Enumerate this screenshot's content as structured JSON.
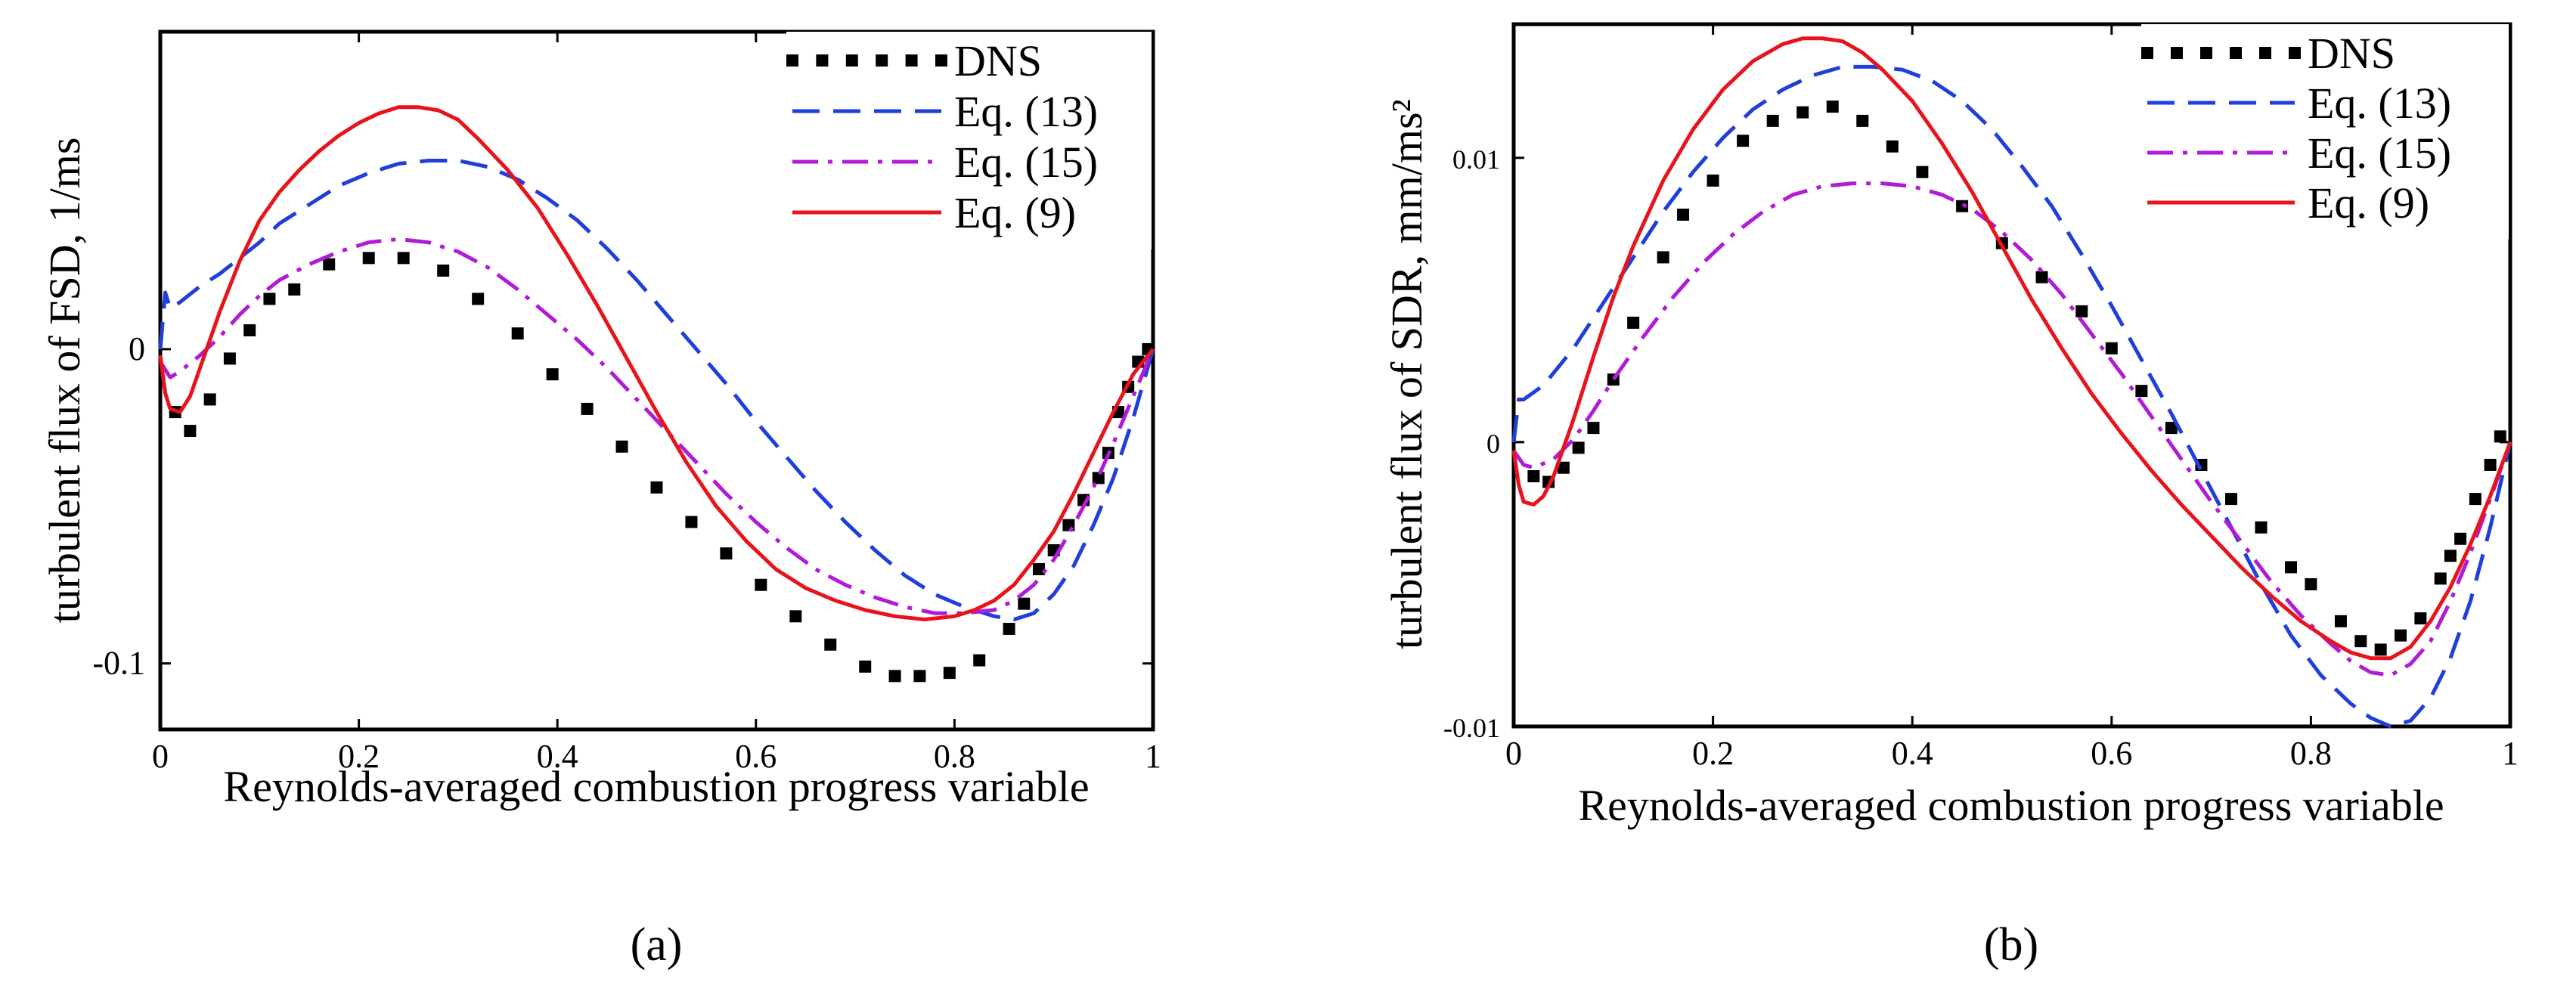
{
  "figure": {
    "panel_labels": [
      "(a)",
      "(b)"
    ]
  },
  "colors": {
    "DNS": "#000000",
    "Eq. (13)": "#1f3fdc",
    "Eq. (15)": "#b01ad8",
    "Eq. (9)": "#e8141c"
  },
  "chart_data": [
    {
      "type": "line",
      "panel": "(a)",
      "title": "",
      "xlabel": "Reynolds-averaged combustion progress variable",
      "ylabel": "turbulent flux of FSD, 1/ms",
      "xlim": [
        0,
        1
      ],
      "ylim": [
        -0.121,
        0.101
      ],
      "xticks": [
        0,
        0.2,
        0.4,
        0.6,
        0.8,
        1
      ],
      "xtick_labels": [
        "0",
        "0.2",
        "0.4",
        "0.6",
        "0.8",
        "1"
      ],
      "yticks": [
        0,
        -0.1
      ],
      "ytick_labels": [
        "0",
        "-0.1"
      ],
      "legend_position": "top-right",
      "series": [
        {
          "name": "DNS",
          "style": "squares",
          "x": [
            0.015,
            0.03,
            0.05,
            0.07,
            0.09,
            0.11,
            0.135,
            0.17,
            0.21,
            0.245,
            0.285,
            0.32,
            0.36,
            0.395,
            0.43,
            0.465,
            0.5,
            0.535,
            0.57,
            0.605,
            0.64,
            0.675,
            0.71,
            0.74,
            0.765,
            0.795,
            0.825,
            0.855,
            0.87,
            0.885,
            0.9,
            0.915,
            0.93,
            0.945,
            0.955,
            0.965,
            0.975,
            0.985,
            0.995
          ],
          "y": [
            -0.02,
            -0.026,
            -0.016,
            -0.003,
            0.006,
            0.016,
            0.019,
            0.027,
            0.029,
            0.029,
            0.025,
            0.016,
            0.005,
            -0.008,
            -0.019,
            -0.031,
            -0.044,
            -0.055,
            -0.065,
            -0.075,
            -0.085,
            -0.094,
            -0.101,
            -0.104,
            -0.104,
            -0.103,
            -0.099,
            -0.089,
            -0.081,
            -0.07,
            -0.064,
            -0.056,
            -0.048,
            -0.041,
            -0.033,
            -0.02,
            -0.012,
            -0.004,
            0.0
          ]
        },
        {
          "name": "Eq. (13)",
          "style": "dashed",
          "x": [
            0.0,
            0.005,
            0.01,
            0.02,
            0.04,
            0.06,
            0.08,
            0.1,
            0.12,
            0.15,
            0.18,
            0.21,
            0.24,
            0.27,
            0.3,
            0.33,
            0.36,
            0.39,
            0.42,
            0.45,
            0.48,
            0.51,
            0.54,
            0.57,
            0.6,
            0.63,
            0.66,
            0.69,
            0.72,
            0.75,
            0.78,
            0.81,
            0.84,
            0.86,
            0.88,
            0.9,
            0.92,
            0.94,
            0.96,
            0.98,
            1.0
          ],
          "y": [
            0.0,
            0.018,
            0.013,
            0.015,
            0.02,
            0.024,
            0.029,
            0.034,
            0.04,
            0.046,
            0.052,
            0.056,
            0.059,
            0.06,
            0.06,
            0.058,
            0.054,
            0.048,
            0.041,
            0.032,
            0.022,
            0.011,
            0.0,
            -0.011,
            -0.023,
            -0.034,
            -0.045,
            -0.055,
            -0.064,
            -0.072,
            -0.078,
            -0.082,
            -0.085,
            -0.086,
            -0.084,
            -0.078,
            -0.069,
            -0.056,
            -0.041,
            -0.022,
            0.0
          ]
        },
        {
          "name": "Eq. (15)",
          "style": "dash-dot",
          "x": [
            0.0,
            0.01,
            0.02,
            0.04,
            0.06,
            0.08,
            0.1,
            0.12,
            0.15,
            0.18,
            0.21,
            0.24,
            0.27,
            0.3,
            0.33,
            0.36,
            0.39,
            0.42,
            0.45,
            0.48,
            0.51,
            0.54,
            0.57,
            0.6,
            0.63,
            0.66,
            0.69,
            0.72,
            0.75,
            0.78,
            0.81,
            0.84,
            0.86,
            0.88,
            0.9,
            0.92,
            0.94,
            0.96,
            0.98,
            1.0
          ],
          "y": [
            -0.004,
            -0.009,
            -0.007,
            -0.002,
            0.004,
            0.011,
            0.017,
            0.022,
            0.027,
            0.031,
            0.034,
            0.035,
            0.034,
            0.031,
            0.026,
            0.019,
            0.011,
            0.003,
            -0.006,
            -0.016,
            -0.026,
            -0.036,
            -0.046,
            -0.055,
            -0.063,
            -0.07,
            -0.075,
            -0.079,
            -0.082,
            -0.084,
            -0.084,
            -0.083,
            -0.08,
            -0.075,
            -0.067,
            -0.056,
            -0.044,
            -0.03,
            -0.015,
            0.0
          ]
        },
        {
          "name": "Eq. (9)",
          "style": "solid",
          "x": [
            0.0,
            0.005,
            0.01,
            0.02,
            0.03,
            0.04,
            0.06,
            0.08,
            0.1,
            0.12,
            0.14,
            0.16,
            0.18,
            0.2,
            0.22,
            0.24,
            0.26,
            0.28,
            0.3,
            0.32,
            0.35,
            0.38,
            0.41,
            0.44,
            0.47,
            0.5,
            0.53,
            0.56,
            0.59,
            0.62,
            0.65,
            0.68,
            0.71,
            0.74,
            0.77,
            0.8,
            0.82,
            0.84,
            0.86,
            0.88,
            0.9,
            0.92,
            0.94,
            0.96,
            0.98,
            1.0
          ],
          "y": [
            -0.002,
            -0.014,
            -0.019,
            -0.02,
            -0.015,
            -0.006,
            0.012,
            0.028,
            0.041,
            0.05,
            0.057,
            0.063,
            0.068,
            0.072,
            0.075,
            0.077,
            0.077,
            0.076,
            0.073,
            0.067,
            0.057,
            0.045,
            0.03,
            0.014,
            -0.003,
            -0.02,
            -0.036,
            -0.05,
            -0.061,
            -0.07,
            -0.076,
            -0.08,
            -0.083,
            -0.085,
            -0.086,
            -0.085,
            -0.083,
            -0.08,
            -0.075,
            -0.067,
            -0.058,
            -0.046,
            -0.033,
            -0.02,
            -0.008,
            0.0
          ]
        }
      ]
    },
    {
      "type": "line",
      "panel": "(b)",
      "title": "",
      "xlabel": "Reynolds-averaged combustion progress variable",
      "ylabel": "turbulent flux of SDR, mm/ms²",
      "xlim": [
        0,
        1
      ],
      "ylim": [
        -0.01,
        0.0147
      ],
      "xticks": [
        0,
        0.2,
        0.4,
        0.6,
        0.8,
        1
      ],
      "xtick_labels": [
        "0",
        "0.2",
        "0.4",
        "0.6",
        "0.8",
        "1"
      ],
      "yticks": [
        -0.01,
        0,
        0.01
      ],
      "ytick_labels": [
        "-0.01",
        "0",
        "0.01"
      ],
      "legend_position": "top-right",
      "series": [
        {
          "name": "DNS",
          "style": "squares",
          "x": [
            0.02,
            0.035,
            0.05,
            0.065,
            0.08,
            0.1,
            0.12,
            0.15,
            0.17,
            0.2,
            0.23,
            0.26,
            0.29,
            0.32,
            0.35,
            0.38,
            0.41,
            0.45,
            0.49,
            0.53,
            0.57,
            0.6,
            0.63,
            0.66,
            0.69,
            0.72,
            0.75,
            0.78,
            0.8,
            0.83,
            0.85,
            0.87,
            0.89,
            0.91,
            0.93,
            0.94,
            0.95,
            0.965,
            0.98,
            0.99
          ],
          "y": [
            -0.0012,
            -0.0014,
            -0.0009,
            -0.0002,
            0.0005,
            0.0022,
            0.0042,
            0.0065,
            0.008,
            0.0092,
            0.0106,
            0.0113,
            0.0116,
            0.0118,
            0.0113,
            0.0104,
            0.0095,
            0.0083,
            0.007,
            0.0058,
            0.0046,
            0.0033,
            0.0018,
            0.0005,
            -0.0008,
            -0.002,
            -0.003,
            -0.0044,
            -0.005,
            -0.0063,
            -0.007,
            -0.0073,
            -0.0068,
            -0.0062,
            -0.0048,
            -0.004,
            -0.0034,
            -0.002,
            -0.0008,
            0.0002
          ]
        },
        {
          "name": "Eq. (13)",
          "style": "dashed",
          "x": [
            0.0,
            0.005,
            0.01,
            0.03,
            0.06,
            0.09,
            0.12,
            0.15,
            0.18,
            0.21,
            0.24,
            0.27,
            0.3,
            0.33,
            0.36,
            0.39,
            0.42,
            0.45,
            0.48,
            0.51,
            0.54,
            0.57,
            0.6,
            0.63,
            0.66,
            0.69,
            0.72,
            0.75,
            0.78,
            0.81,
            0.84,
            0.86,
            0.88,
            0.9,
            0.92,
            0.94,
            0.96,
            0.98,
            1.0
          ],
          "y": [
            0.0,
            0.0015,
            0.0015,
            0.002,
            0.0033,
            0.0049,
            0.0065,
            0.0081,
            0.0095,
            0.0107,
            0.0117,
            0.0124,
            0.0129,
            0.0132,
            0.0132,
            0.0131,
            0.0127,
            0.012,
            0.011,
            0.0097,
            0.0083,
            0.0066,
            0.0048,
            0.0029,
            0.001,
            -0.001,
            -0.003,
            -0.005,
            -0.0068,
            -0.0082,
            -0.0092,
            -0.0097,
            -0.01,
            -0.0098,
            -0.009,
            -0.0076,
            -0.0056,
            -0.003,
            0.0
          ]
        },
        {
          "name": "Eq. (15)",
          "style": "dash-dot",
          "x": [
            0.0,
            0.01,
            0.02,
            0.04,
            0.06,
            0.08,
            0.1,
            0.13,
            0.16,
            0.19,
            0.22,
            0.25,
            0.28,
            0.31,
            0.34,
            0.37,
            0.4,
            0.43,
            0.46,
            0.49,
            0.52,
            0.55,
            0.58,
            0.61,
            0.64,
            0.67,
            0.7,
            0.73,
            0.76,
            0.79,
            0.82,
            0.84,
            0.86,
            0.88,
            0.9,
            0.92,
            0.94,
            0.96,
            0.98,
            1.0
          ],
          "y": [
            -0.0003,
            -0.0008,
            -0.0009,
            -0.0006,
            0.0001,
            0.0011,
            0.0022,
            0.0037,
            0.0051,
            0.0063,
            0.0073,
            0.0081,
            0.0087,
            0.009,
            0.0091,
            0.0091,
            0.009,
            0.0087,
            0.0082,
            0.0074,
            0.0064,
            0.0052,
            0.0038,
            0.0024,
            0.0009,
            -0.0006,
            -0.0021,
            -0.0035,
            -0.0049,
            -0.0061,
            -0.0071,
            -0.0077,
            -0.0081,
            -0.0082,
            -0.0078,
            -0.007,
            -0.0056,
            -0.0039,
            -0.002,
            0.0
          ]
        },
        {
          "name": "Eq. (9)",
          "style": "solid",
          "x": [
            0.0,
            0.005,
            0.01,
            0.02,
            0.03,
            0.04,
            0.06,
            0.08,
            0.1,
            0.12,
            0.15,
            0.18,
            0.21,
            0.24,
            0.27,
            0.29,
            0.31,
            0.33,
            0.35,
            0.37,
            0.4,
            0.43,
            0.46,
            0.49,
            0.52,
            0.55,
            0.58,
            0.61,
            0.64,
            0.67,
            0.7,
            0.73,
            0.76,
            0.79,
            0.82,
            0.84,
            0.86,
            0.88,
            0.9,
            0.92,
            0.94,
            0.96,
            0.98,
            1.0
          ],
          "y": [
            -0.0003,
            -0.0015,
            -0.0021,
            -0.0022,
            -0.0019,
            -0.0012,
            0.0008,
            0.003,
            0.0051,
            0.0069,
            0.0092,
            0.011,
            0.0124,
            0.0134,
            0.014,
            0.0142,
            0.0142,
            0.0141,
            0.0137,
            0.0131,
            0.012,
            0.0105,
            0.0088,
            0.0069,
            0.005,
            0.0033,
            0.0017,
            0.0003,
            -0.001,
            -0.0022,
            -0.0033,
            -0.0044,
            -0.0054,
            -0.0063,
            -0.007,
            -0.0074,
            -0.0076,
            -0.0076,
            -0.0072,
            -0.0063,
            -0.0051,
            -0.0036,
            -0.0019,
            0.0
          ]
        }
      ]
    }
  ]
}
